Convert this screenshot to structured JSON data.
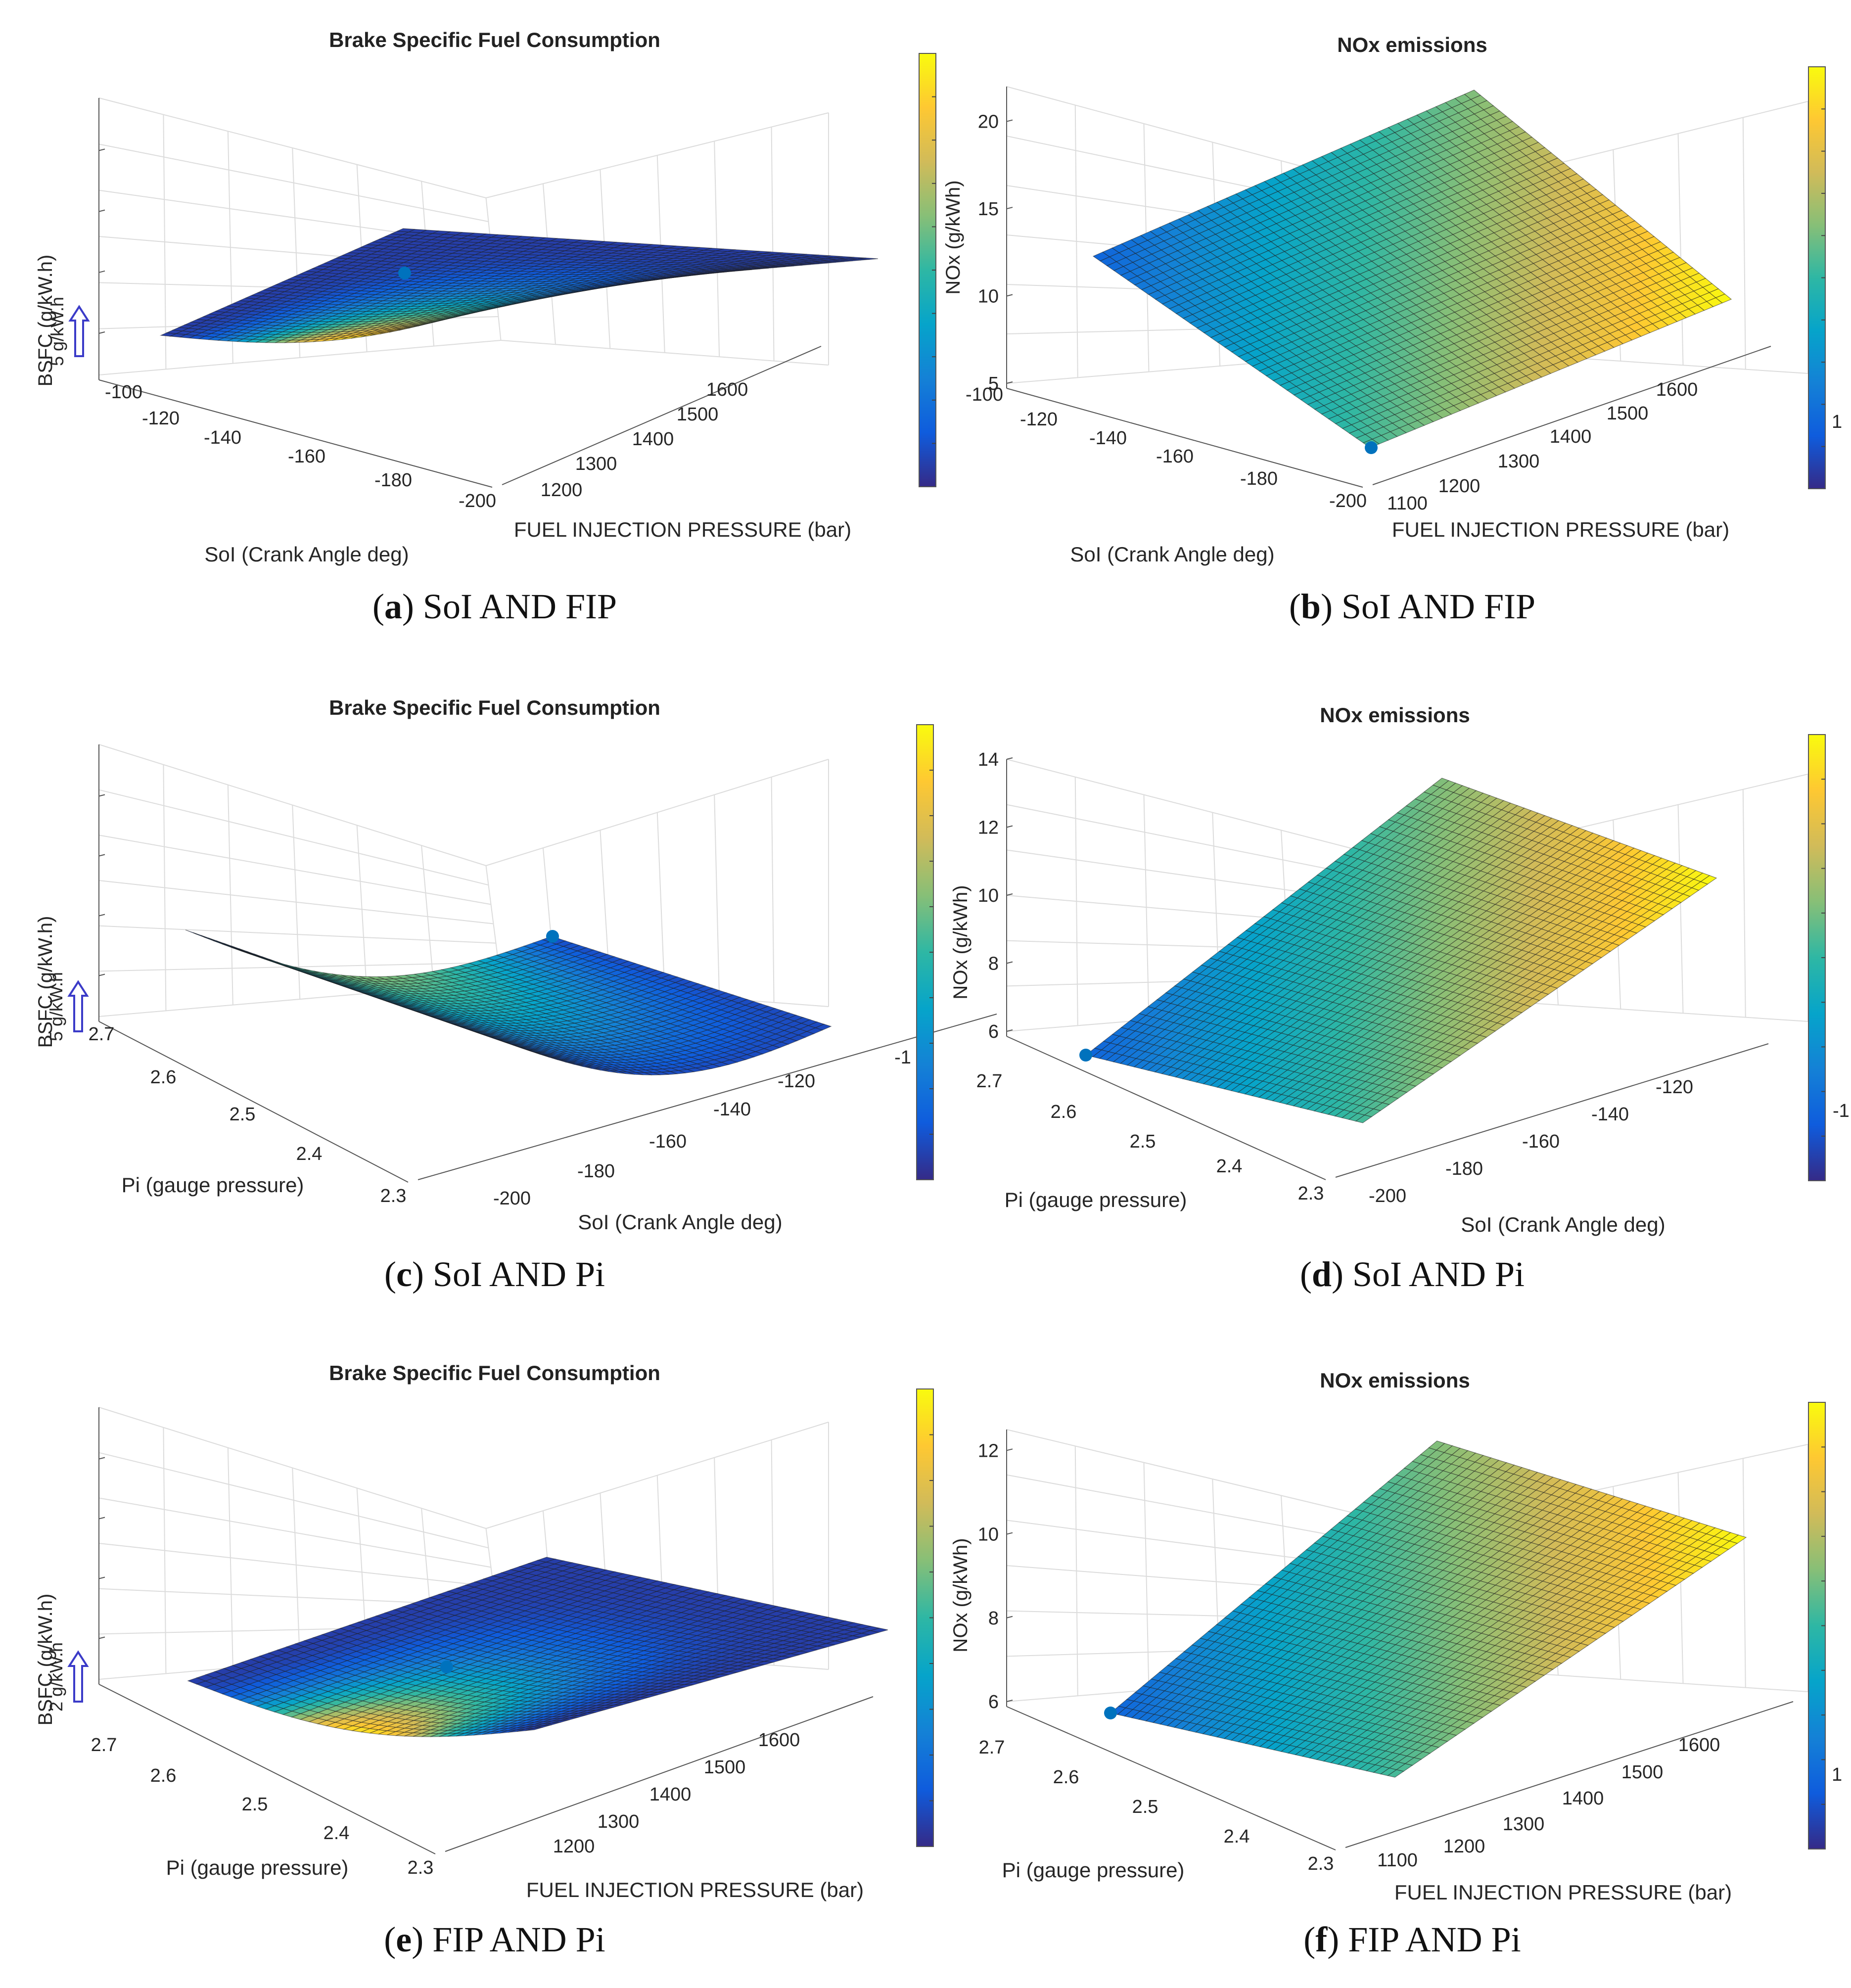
{
  "chart_data": [
    {
      "id": "a",
      "type": "surface",
      "title": "Brake Specific Fuel Consumption",
      "xlabel": "SoI (Crank Angle deg)",
      "ylabel": "FUEL INJECTION PRESSURE (bar)",
      "zlabel": "BSFC (g/kW.h)",
      "z_scale_note": "5 g/kW.h",
      "x_ticks": [
        "-100",
        "-120",
        "-140",
        "-160",
        "-180",
        "-200"
      ],
      "y_ticks": [
        "1200",
        "1300",
        "1400",
        "1500",
        "1600"
      ],
      "z_ticks": [],
      "surface": "bowl",
      "caption_letter": "a",
      "caption_text": "SoI AND FIP"
    },
    {
      "id": "b",
      "type": "surface",
      "title": "NOx emissions",
      "xlabel": "SoI (Crank Angle deg)",
      "ylabel": "FUEL INJECTION PRESSURE (bar)",
      "zlabel": "NOx (g/kWh)",
      "x_ticks": [
        "-100",
        "-120",
        "-140",
        "-160",
        "-180",
        "-200"
      ],
      "y_ticks": [
        "1100",
        "1200",
        "1300",
        "1400",
        "1500",
        "1600"
      ],
      "z_ticks": [
        "5",
        "10",
        "15",
        "20"
      ],
      "zlim": [
        5,
        22
      ],
      "colorbar_ticks": [
        "1"
      ],
      "surface": "plane",
      "caption_letter": "b",
      "caption_text": "SoI AND FIP"
    },
    {
      "id": "c",
      "type": "surface",
      "title": "Brake Specific Fuel Consumption",
      "xlabel": "Pi (gauge pressure)",
      "ylabel": "SoI (Crank Angle deg)",
      "zlabel": "BSFC (g/kW.h)",
      "z_scale_note": "5 g/kW.h",
      "x_ticks": [
        "2.7",
        "2.6",
        "2.5",
        "2.4",
        "2.3"
      ],
      "y_ticks": [
        "-200",
        "-180",
        "-160",
        "-140",
        "-120",
        "-1"
      ],
      "z_ticks": [],
      "surface": "curl",
      "caption_letter": "c",
      "caption_text": "SoI AND Pi"
    },
    {
      "id": "d",
      "type": "surface",
      "title": "NOx emissions",
      "xlabel": "Pi (gauge pressure)",
      "ylabel": "SoI (Crank Angle deg)",
      "zlabel": "NOx (g/kWh)",
      "x_ticks": [
        "2.7",
        "2.6",
        "2.5",
        "2.4",
        "2.3"
      ],
      "y_ticks": [
        "-200",
        "-180",
        "-160",
        "-140",
        "-120"
      ],
      "z_ticks": [
        "6",
        "8",
        "10",
        "12",
        "14"
      ],
      "zlim": [
        6,
        14
      ],
      "colorbar_ticks": [
        "-1"
      ],
      "surface": "plane",
      "caption_letter": "d",
      "caption_text": "SoI AND Pi"
    },
    {
      "id": "e",
      "type": "surface",
      "title": "Brake Specific Fuel Consumption",
      "xlabel": "Pi (gauge pressure)",
      "ylabel": "FUEL INJECTION PRESSURE (bar)",
      "zlabel": "BSFC (g/kW.h)",
      "z_scale_note": "2 g/kW.h",
      "x_ticks": [
        "2.7",
        "2.6",
        "2.5",
        "2.4",
        "2.3"
      ],
      "y_ticks": [
        "1200",
        "1300",
        "1400",
        "1500",
        "1600"
      ],
      "z_ticks": [],
      "surface": "bowl",
      "caption_letter": "e",
      "caption_text": "FIP AND Pi"
    },
    {
      "id": "f",
      "type": "surface",
      "title": "NOx emissions",
      "xlabel": "Pi (gauge pressure)",
      "ylabel": "FUEL INJECTION PRESSURE (bar)",
      "zlabel": "NOx (g/kWh)",
      "x_ticks": [
        "2.7",
        "2.6",
        "2.5",
        "2.4",
        "2.3"
      ],
      "y_ticks": [
        "1100",
        "1200",
        "1300",
        "1400",
        "1500",
        "1600"
      ],
      "z_ticks": [
        "6",
        "8",
        "10",
        "12"
      ],
      "zlim": [
        6,
        12.5
      ],
      "colorbar_ticks": [
        "1"
      ],
      "surface": "plane",
      "caption_letter": "f",
      "caption_text": "FIP AND Pi"
    }
  ],
  "colors": {
    "parula": [
      "#352a87",
      "#0f5cdd",
      "#1481d6",
      "#06a4ca",
      "#2eb7a4",
      "#87bf77",
      "#d1bb59",
      "#fec832",
      "#f9fb0e"
    ],
    "marker": "#0072bd",
    "arrow": "#3b3bc8"
  }
}
